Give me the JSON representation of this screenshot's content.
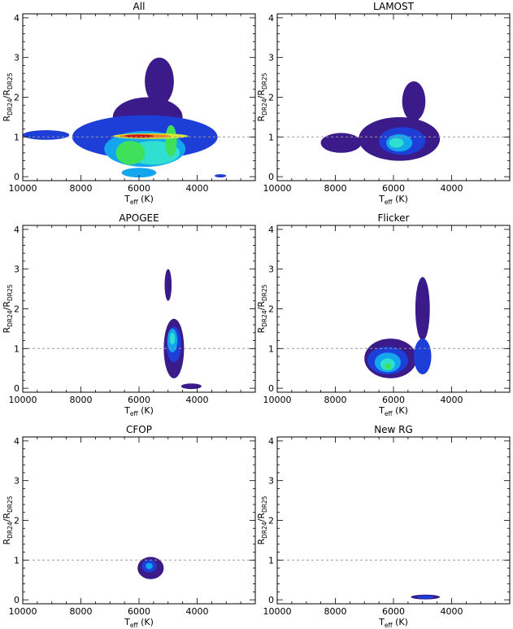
{
  "palette": [
    "#2a0a4a",
    "#3b1a8a",
    "#1e3ed8",
    "#13a6ee",
    "#2fe0d0",
    "#3fe05a",
    "#d7e83a",
    "#f08a14",
    "#c8141a"
  ],
  "reference_line_color": "#999999",
  "chart_data": [
    {
      "type": "heatmap",
      "title": "All",
      "xlabel": "T_eff (K)",
      "ylabel": "R_DR24/R_DR25",
      "xlim": [
        10000,
        2000
      ],
      "ylim": [
        -0.1,
        4.1
      ],
      "x_ticks": [
        10000,
        8000,
        6000,
        4000
      ],
      "y_ticks": [
        0,
        1,
        2,
        3,
        4
      ],
      "reference_line_y": 1,
      "blobs": [
        {
          "x": 5800,
          "y": 1.0,
          "sx": 2500,
          "sy": 0.55,
          "level": 2
        },
        {
          "x": 9200,
          "y": 1.05,
          "sx": 800,
          "sy": 0.12,
          "level": 2
        },
        {
          "x": 5700,
          "y": 1.5,
          "sx": 1200,
          "sy": 0.5,
          "level": 1
        },
        {
          "x": 5300,
          "y": 2.4,
          "sx": 500,
          "sy": 0.6,
          "level": 1
        },
        {
          "x": 5800,
          "y": 0.7,
          "sx": 1400,
          "sy": 0.45,
          "level": 3
        },
        {
          "x": 5500,
          "y": 0.6,
          "sx": 900,
          "sy": 0.3,
          "level": 4
        },
        {
          "x": 6300,
          "y": 0.6,
          "sx": 500,
          "sy": 0.3,
          "level": 5
        },
        {
          "x": 5600,
          "y": 1.02,
          "sx": 1300,
          "sy": 0.07,
          "level": 6
        },
        {
          "x": 5800,
          "y": 1.02,
          "sx": 900,
          "sy": 0.05,
          "level": 7
        },
        {
          "x": 6000,
          "y": 1.02,
          "sx": 500,
          "sy": 0.04,
          "level": 8
        },
        {
          "x": 4900,
          "y": 0.9,
          "sx": 200,
          "sy": 0.4,
          "level": 5
        },
        {
          "x": 6000,
          "y": 0.1,
          "sx": 600,
          "sy": 0.12,
          "level": 3
        },
        {
          "x": 3200,
          "y": 0.02,
          "sx": 200,
          "sy": 0.04,
          "level": 2
        }
      ]
    },
    {
      "type": "heatmap",
      "title": "LAMOST",
      "xlabel": "T_eff (K)",
      "ylabel": "R_DR24/R_DR25",
      "xlim": [
        10000,
        2000
      ],
      "ylim": [
        -0.1,
        4.1
      ],
      "x_ticks": [
        10000,
        8000,
        6000,
        4000
      ],
      "y_ticks": [
        0,
        1,
        2,
        3,
        4
      ],
      "reference_line_y": 1,
      "blobs": [
        {
          "x": 5800,
          "y": 0.95,
          "sx": 1400,
          "sy": 0.55,
          "level": 1
        },
        {
          "x": 7800,
          "y": 0.85,
          "sx": 700,
          "sy": 0.25,
          "level": 1
        },
        {
          "x": 5700,
          "y": 0.9,
          "sx": 800,
          "sy": 0.35,
          "level": 2
        },
        {
          "x": 5800,
          "y": 0.85,
          "sx": 450,
          "sy": 0.22,
          "level": 3
        },
        {
          "x": 5900,
          "y": 0.85,
          "sx": 250,
          "sy": 0.12,
          "level": 4
        },
        {
          "x": 5300,
          "y": 1.9,
          "sx": 400,
          "sy": 0.5,
          "level": 1
        }
      ]
    },
    {
      "type": "heatmap",
      "title": "APOGEE",
      "xlabel": "T_eff (K)",
      "ylabel": "R_DR24/R_DR25",
      "xlim": [
        10000,
        2000
      ],
      "ylim": [
        -0.1,
        4.1
      ],
      "x_ticks": [
        10000,
        8000,
        6000,
        4000
      ],
      "y_ticks": [
        0,
        1,
        2,
        3,
        4
      ],
      "reference_line_y": 1,
      "blobs": [
        {
          "x": 4800,
          "y": 1.0,
          "sx": 350,
          "sy": 0.75,
          "level": 1
        },
        {
          "x": 4800,
          "y": 1.1,
          "sx": 250,
          "sy": 0.45,
          "level": 2
        },
        {
          "x": 4850,
          "y": 1.2,
          "sx": 170,
          "sy": 0.3,
          "level": 3
        },
        {
          "x": 4850,
          "y": 1.25,
          "sx": 90,
          "sy": 0.15,
          "level": 4
        },
        {
          "x": 5000,
          "y": 2.6,
          "sx": 120,
          "sy": 0.4,
          "level": 1
        },
        {
          "x": 4200,
          "y": 0.05,
          "sx": 350,
          "sy": 0.07,
          "level": 1
        }
      ]
    },
    {
      "type": "heatmap",
      "title": "Flicker",
      "xlabel": "T_eff (K)",
      "ylabel": "R_DR24/R_DR25",
      "xlim": [
        10000,
        2000
      ],
      "ylim": [
        -0.1,
        4.1
      ],
      "x_ticks": [
        10000,
        8000,
        6000,
        4000
      ],
      "y_ticks": [
        0,
        1,
        2,
        3,
        4
      ],
      "reference_line_y": 1,
      "blobs": [
        {
          "x": 6100,
          "y": 0.75,
          "sx": 900,
          "sy": 0.5,
          "level": 1
        },
        {
          "x": 6200,
          "y": 0.7,
          "sx": 700,
          "sy": 0.35,
          "level": 2
        },
        {
          "x": 6200,
          "y": 0.65,
          "sx": 450,
          "sy": 0.25,
          "level": 3
        },
        {
          "x": 6200,
          "y": 0.6,
          "sx": 250,
          "sy": 0.15,
          "level": 4
        },
        {
          "x": 6200,
          "y": 0.55,
          "sx": 110,
          "sy": 0.08,
          "level": 5
        },
        {
          "x": 5000,
          "y": 2.0,
          "sx": 250,
          "sy": 0.8,
          "level": 1
        },
        {
          "x": 5000,
          "y": 0.8,
          "sx": 300,
          "sy": 0.45,
          "level": 2
        }
      ]
    },
    {
      "type": "heatmap",
      "title": "CFOP",
      "xlabel": "T_eff (K)",
      "ylabel": "R_DR24/R_DR25",
      "xlim": [
        10000,
        2000
      ],
      "ylim": [
        -0.1,
        4.1
      ],
      "x_ticks": [
        10000,
        8000,
        6000,
        4000
      ],
      "y_ticks": [
        0,
        1,
        2,
        3,
        4
      ],
      "reference_line_y": 1,
      "blobs": [
        {
          "x": 5600,
          "y": 0.8,
          "sx": 450,
          "sy": 0.28,
          "level": 1
        },
        {
          "x": 5650,
          "y": 0.85,
          "sx": 260,
          "sy": 0.16,
          "level": 2
        },
        {
          "x": 5650,
          "y": 0.85,
          "sx": 120,
          "sy": 0.08,
          "level": 3
        }
      ]
    },
    {
      "type": "heatmap",
      "title": "New RG",
      "xlabel": "T_eff (K)",
      "ylabel": "R_DR24/R_DR25",
      "xlim": [
        10000,
        2000
      ],
      "ylim": [
        -0.1,
        4.1
      ],
      "x_ticks": [
        10000,
        8000,
        6000,
        4000
      ],
      "y_ticks": [
        0,
        1,
        2,
        3,
        4
      ],
      "reference_line_y": 1,
      "blobs": [
        {
          "x": 4900,
          "y": 0.07,
          "sx": 500,
          "sy": 0.06,
          "level": 1
        },
        {
          "x": 4900,
          "y": 0.07,
          "sx": 280,
          "sy": 0.04,
          "level": 2
        }
      ]
    }
  ]
}
